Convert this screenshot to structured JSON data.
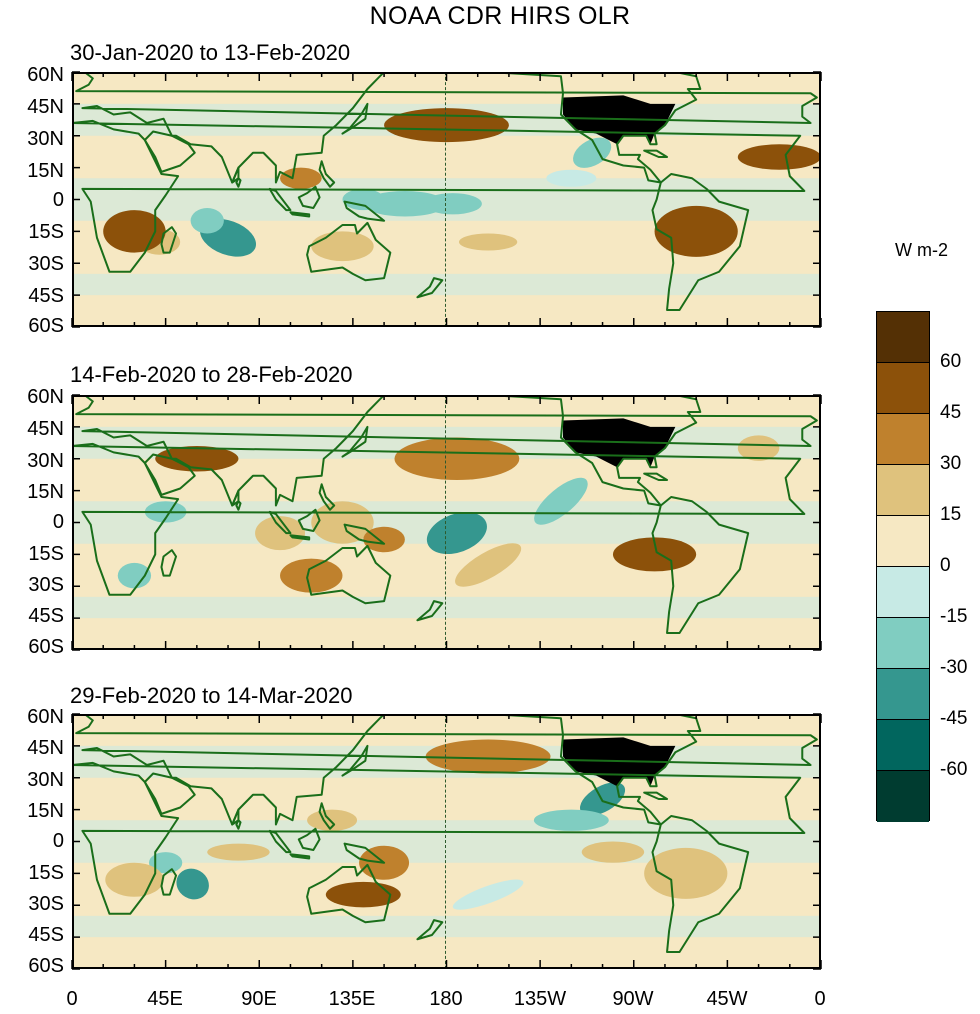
{
  "figure": {
    "title": "NOAA CDR HIRS OLR",
    "units_label": "W m-2"
  },
  "panels": [
    {
      "label": "30-Jan-2020 to 13-Feb-2020"
    },
    {
      "label": "14-Feb-2020 to 28-Feb-2020"
    },
    {
      "label": "29-Feb-2020 to 14-Mar-2020"
    }
  ],
  "axes": {
    "lat_ticks": [
      "60N",
      "45N",
      "30N",
      "15N",
      "0",
      "15S",
      "30S",
      "45S",
      "60S"
    ],
    "lon_ticks": [
      "0",
      "45E",
      "90E",
      "135E",
      "180",
      "135W",
      "90W",
      "45W",
      "0"
    ],
    "lat_range": [
      -60,
      60
    ],
    "lon_range": [
      0,
      360
    ],
    "dateline_lon": 180
  },
  "colorbar": {
    "tick_labels": [
      "60",
      "45",
      "30",
      "15",
      "0",
      "-15",
      "-30",
      "-45",
      "-60"
    ],
    "levels": [
      60,
      45,
      30,
      15,
      0,
      -15,
      -30,
      -45,
      -60
    ],
    "colors": [
      "#543005",
      "#8c510a",
      "#bf812d",
      "#dfc27d",
      "#f6e8c3",
      "#c7eae5",
      "#80cdc1",
      "#35978f",
      "#01665e",
      "#003c30"
    ]
  },
  "colors": {
    "coastline": "#1a6e1a",
    "background_neutral": "#f6e8c3",
    "land_mask_usa": "#000000"
  }
}
